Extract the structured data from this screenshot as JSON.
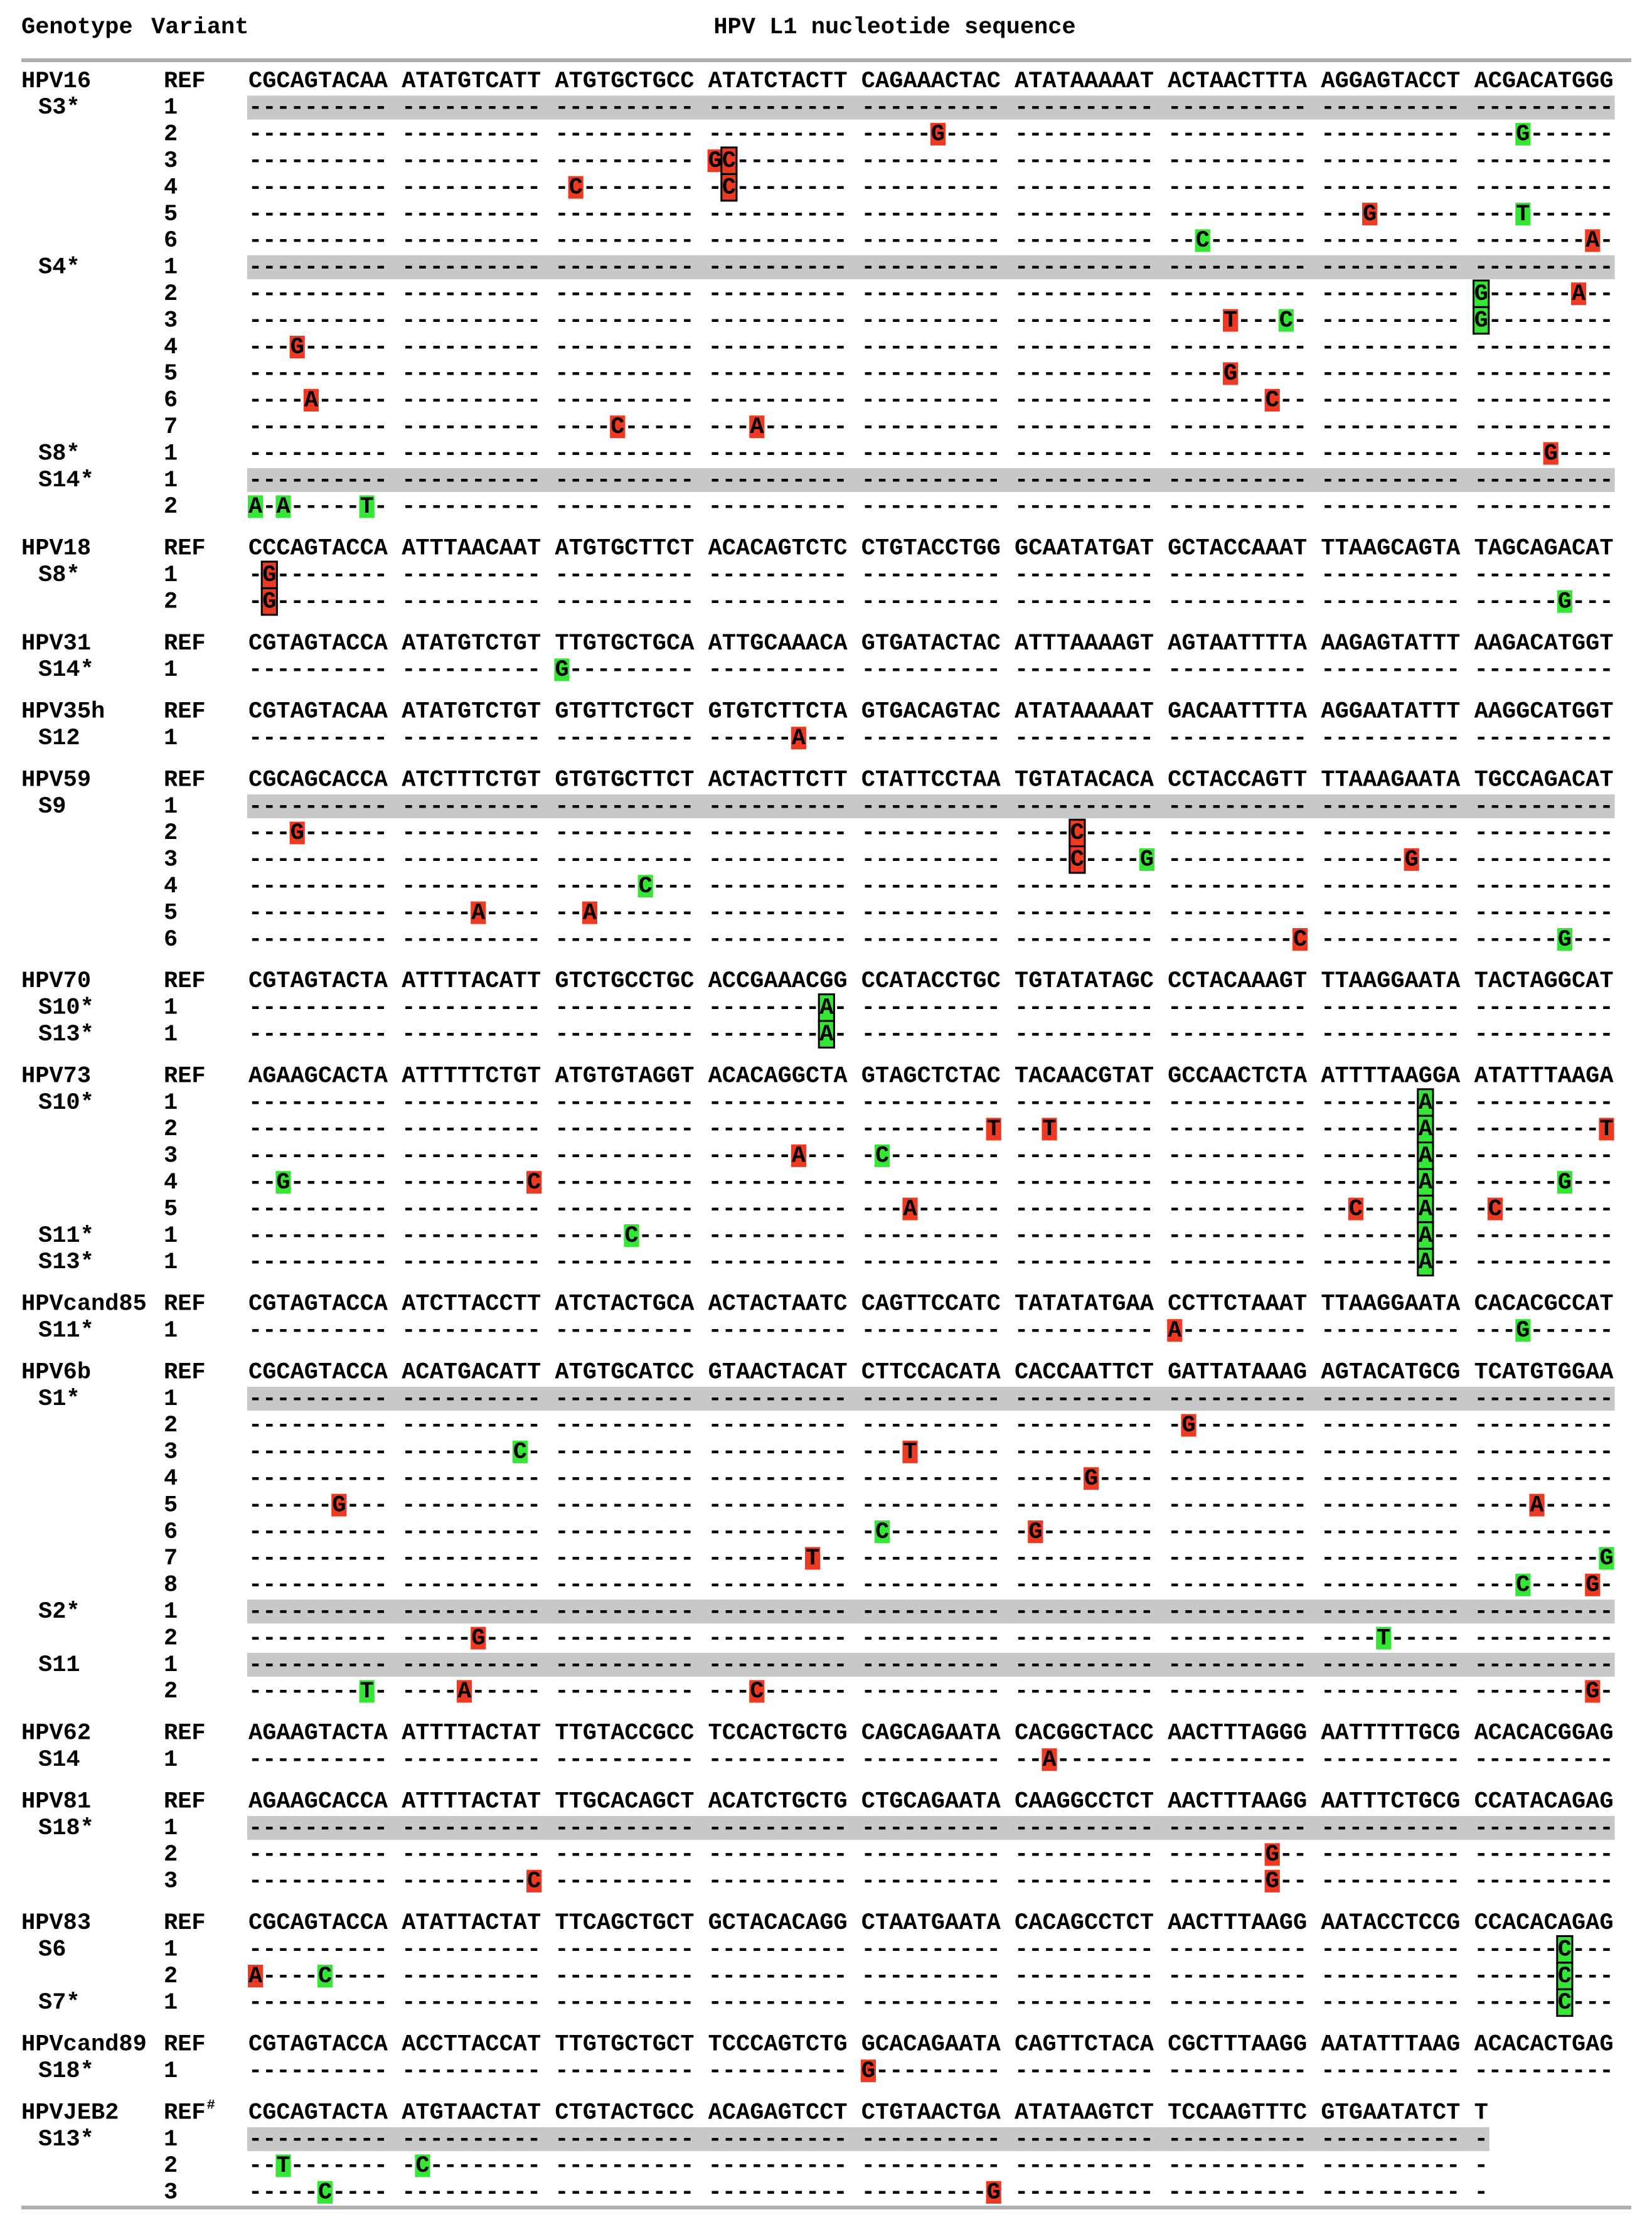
{
  "header": {
    "genotype": "Genotype",
    "variant": "Variant",
    "sequence": "HPV L1 nucleotide sequence"
  },
  "groups": [
    {
      "genotype": "HPV16",
      "ref_label": "REF",
      "ref": "CGCAGTACAA ATATGTCATT ATGTGCTGCC ATATCTACTT CAGAAACTAC ATATAAAAAT ACTAACTTTA AGGAGTACCT ACGACATGGG",
      "rows": [
        {
          "sample": "S3*",
          "variant": "1",
          "shaded": true,
          "hl": "",
          "seq": "---------- ---------- ---------- ---------- ---------- ---------- ---------- ---------- ----------"
        },
        {
          "variant": "2",
          "hl": "rg",
          "seq": "---------- ---------- ---------- ---------- -----G---- ---------- ---------- ---------- ---G------"
        },
        {
          "variant": "3",
          "hl": "rR",
          "seq": "---------- ---------- ---------- GC-------- ---------- ---------- ---------- ---------- ----------"
        },
        {
          "variant": "4",
          "hl": "rR",
          "seq": "---------- ---------- -C-------- -C-------- ---------- ---------- ---------- ---------- ----------"
        },
        {
          "variant": "5",
          "hl": "rg",
          "seq": "---------- ---------- ---------- ---------- ---------- ---------- ---------- ---G------ ---T------"
        },
        {
          "variant": "6",
          "hl": "gr",
          "seq": "---------- ---------- ---------- ---------- ---------- ---------- --C------- ---------- --------A-"
        },
        {
          "sample": "S4*",
          "variant": "1",
          "shaded": true,
          "hl": "",
          "seq": "---------- ---------- ---------- ---------- ---------- ---------- ---------- ---------- ----------"
        },
        {
          "variant": "2",
          "hl": "Gr",
          "seq": "---------- ---------- ---------- ---------- ---------- ---------- ---------- ---------- G------A--"
        },
        {
          "variant": "3",
          "hl": "rgG",
          "seq": "---------- ---------- ---------- ---------- ---------- ---------- ----T---C- ---------- G---------"
        },
        {
          "variant": "4",
          "hl": "r",
          "seq": "---G------ ---------- ---------- ---------- ---------- ---------- ---------- ---------- ----------"
        },
        {
          "variant": "5",
          "hl": "r",
          "seq": "---------- ---------- ---------- ---------- ---------- ---------- ----G----- ---------- ----------"
        },
        {
          "variant": "6",
          "hl": "rr",
          "seq": "----A----- ---------- ---------- ---------- ---------- ---------- -------C-- ---------- ----------"
        },
        {
          "variant": "7",
          "hl": "rr",
          "seq": "---------- ---------- ----C----- ---A------ ---------- ---------- ---------- ---------- ----------"
        },
        {
          "sample": "S8*",
          "variant": "1",
          "hl": "r",
          "seq": "---------- ---------- ---------- ---------- ---------- ---------- ---------- ---------- -----G----"
        },
        {
          "sample": "S14*",
          "variant": "1",
          "shaded": true,
          "hl": "",
          "seq": "---------- ---------- ---------- ---------- ---------- ---------- ---------- ---------- ----------"
        },
        {
          "variant": "2",
          "hl": "ggg",
          "seq": "A-A-----T- ---------- ---------- ---------- ---------- ---------- ---------- ---------- ----------"
        }
      ]
    },
    {
      "genotype": "HPV18",
      "ref_label": "REF",
      "ref": "CCCAGTACCA ATTTAACAAT ATGTGCTTCT ACACAGTCTC CTGTACCTGG GCAATATGAT GCTACCAAAT TTAAGCAGTA TAGCAGACAT",
      "rows": [
        {
          "sample": "S8*",
          "variant": "1",
          "hl": "R",
          "seq": "-G-------- ---------- ---------- ---------- ---------- ---------- ---------- ---------- ----------"
        },
        {
          "variant": "2",
          "hl": "Rg",
          "seq": "-G-------- ---------- ---------- ---------- ---------- ---------- ---------- ---------- ------G---"
        }
      ]
    },
    {
      "genotype": "HPV31",
      "ref_label": "REF",
      "ref": "CGTAGTACCA ATATGTCTGT TTGTGCTGCA ATTGCAAACA GTGATACTAC ATTTAAAAGT AGTAATTTTA AAGAGTATTT AAGACATGGT",
      "rows": [
        {
          "sample": "S14*",
          "variant": "1",
          "hl": "g",
          "seq": "---------- ---------- G--------- ---------- ---------- ---------- ---------- ---------- ----------"
        }
      ]
    },
    {
      "genotype": "HPV35h",
      "ref_label": "REF",
      "ref": "CGTAGTACAA ATATGTCTGT GTGTTCTGCT GTGTCTTCTA GTGACAGTAC ATATAAAAAT GACAATTTTA AGGAATATTT AAGGCATGGT",
      "rows": [
        {
          "sample": "S12",
          "variant": "1",
          "hl": "r",
          "seq": "---------- ---------- ---------- ------A--- ---------- ---------- ---------- ---------- ----------"
        }
      ]
    },
    {
      "genotype": "HPV59",
      "ref_label": "REF",
      "ref": "CGCAGCACCA ATCTTTCTGT GTGTGCTTCT ACTACTTCTT CTATTCCTAA TGTATACACA CCTACCAGTT TTAAAGAATA TGCCAGACAT",
      "rows": [
        {
          "sample": "S9",
          "variant": "1",
          "shaded": true,
          "hl": "",
          "seq": "---------- ---------- ---------- ---------- ---------- ---------- ---------- ---------- ----------"
        },
        {
          "variant": "2",
          "hl": "rR",
          "seq": "---G------ ---------- ---------- ---------- ---------- ----C----- ---------- ---------- ----------"
        },
        {
          "variant": "3",
          "hl": "Rgr",
          "seq": "---------- ---------- ---------- ---------- ---------- ----C----G ---------- ------G--- ----------"
        },
        {
          "variant": "4",
          "hl": "g",
          "seq": "---------- ---------- ------C--- ---------- ---------- ---------- ---------- ---------- ----------"
        },
        {
          "variant": "5",
          "hl": "rr",
          "seq": "---------- -----A---- --A------- ---------- ---------- ---------- ---------- ---------- ----------"
        },
        {
          "variant": "6",
          "hl": "rg",
          "seq": "---------- ---------- ---------- ---------- ---------- ---------- ---------C ---------- ------G---"
        }
      ]
    },
    {
      "genotype": "HPV70",
      "ref_label": "REF",
      "ref": "CGTAGTACTA ATTTTACATT GTCTGCCTGC ACCGAAACGG CCATACCTGC TGTATATAGC CCTACAAAGT TTAAGGAATA TACTAGGCAT",
      "rows": [
        {
          "sample": "S10*",
          "variant": "1",
          "hl": "G",
          "seq": "---------- ---------- ---------- --------A- ---------- ---------- ---------- ---------- ----------"
        },
        {
          "sample": "S13*",
          "variant": "1",
          "hl": "G",
          "seq": "---------- ---------- ---------- --------A- ---------- ---------- ---------- ---------- ----------"
        }
      ]
    },
    {
      "genotype": "HPV73",
      "ref_label": "REF",
      "ref": "AGAAGCACTA ATTTTTCTGT ATGTGTAGGT ACACAGGCTA GTAGCTCTAC TACAACGTAT GCCAACTCTA ATTTTAAGGA ATATTTAAGA",
      "rows": [
        {
          "sample": "S10*",
          "variant": "1",
          "hl": "G",
          "seq": "---------- ---------- ---------- ---------- ---------- ---------- ---------- -------A-- ----------"
        },
        {
          "variant": "2",
          "hl": "rrGr",
          "seq": "---------- ---------- ---------- ---------- ---------T --T------- ---------- -------A-- ---------T"
        },
        {
          "variant": "3",
          "hl": "rgG",
          "seq": "---------- ---------- ---------- ------A--- -C-------- ---------- ---------- -------A-- ----------"
        },
        {
          "variant": "4",
          "hl": "grGg",
          "seq": "--G------- ---------C ---------- ---------- ---------- ---------- ---------- -------A-- ------G---"
        },
        {
          "variant": "5",
          "hl": "rrGr",
          "seq": "---------- ---------- ---------- ---------- ---A------ ---------- ---------- --C----A-- -C--------"
        },
        {
          "sample": "S11*",
          "variant": "1",
          "hl": "gG",
          "seq": "---------- ---------- -----C---- ---------- ---------- ---------- ---------- -------A-- ----------"
        },
        {
          "sample": "S13*",
          "variant": "1",
          "hl": "G",
          "seq": "---------- ---------- ---------- ---------- ---------- ---------- ---------- -------A-- ----------"
        }
      ]
    },
    {
      "genotype": "HPVcand85",
      "ref_label": "REF",
      "ref": "CGTAGTACCA ATCTTACCTT ATCTACTGCA ACTACTAATC CAGTTCCATC TATATATGAA CCTTCTAAAT TTAAGGAATA CACACGCCAT",
      "rows": [
        {
          "sample": "S11*",
          "variant": "1",
          "hl": "rg",
          "seq": "---------- ---------- ---------- ---------- ---------- ---------- A--------- ---------- ---G------"
        }
      ]
    },
    {
      "genotype": "HPV6b",
      "ref_label": "REF",
      "ref": "CGCAGTACCA ACATGACATT ATGTGCATCC GTAACTACAT CTTCCACATA CACCAATTCT GATTATAAAG AGTACATGCG TCATGTGGAA",
      "rows": [
        {
          "sample": "S1*",
          "variant": "1",
          "shaded": true,
          "hl": "",
          "seq": "---------- ---------- ---------- ---------- ---------- ---------- ---------- ---------- ----------"
        },
        {
          "variant": "2",
          "hl": "r",
          "seq": "---------- ---------- ---------- ---------- ---------- ---------- -G-------- ---------- ----------"
        },
        {
          "variant": "3",
          "hl": "gr",
          "seq": "---------- --------C- ---------- ---------- ---T------ ---------- ---------- ---------- ----------"
        },
        {
          "variant": "4",
          "hl": "r",
          "seq": "---------- ---------- ---------- ---------- ---------- -----G---- ---------- ---------- ----------"
        },
        {
          "variant": "5",
          "hl": "rr",
          "seq": "------G--- ---------- ---------- ---------- ---------- ---------- ---------- ---------- ----A-----"
        },
        {
          "variant": "6",
          "hl": "gr",
          "seq": "---------- ---------- ---------- ---------- -C-------- -G-------- ---------- ---------- ----------"
        },
        {
          "variant": "7",
          "hl": "rg",
          "seq": "---------- ---------- ---------- -------T-- ---------- ---------- ---------- ---------- ---------G"
        },
        {
          "variant": "8",
          "hl": "gr",
          "seq": "---------- ---------- ---------- ---------- ---------- ---------- ---------- ---------- ---C----G-"
        },
        {
          "sample": "S2*",
          "variant": "1",
          "shaded": true,
          "hl": "",
          "seq": "---------- ---------- ---------- ---------- ---------- ---------- ---------- ---------- ----------"
        },
        {
          "variant": "2",
          "hl": "rg",
          "seq": "---------- -----G---- ---------- ---------- ---------- ---------- ---------- ----T----- ----------"
        },
        {
          "sample": "S11",
          "variant": "1",
          "shaded": true,
          "hl": "",
          "seq": "---------- ---------- ---------- ---------- ---------- ---------- ---------- ---------- ----------"
        },
        {
          "variant": "2",
          "hl": "grrr",
          "seq": "--------T- ----A----- ---------- ---C------ ---------- ---------- ---------- ---------- --------G-"
        }
      ]
    },
    {
      "genotype": "HPV62",
      "ref_label": "REF",
      "ref": "AGAAGTACTA ATTTTACTAT TTGTACCGCC TCCACTGCTG CAGCAGAATA CACGGCTACC AACTTTAGGG AATTTTTGCG ACACACGGAG",
      "rows": [
        {
          "sample": "S14",
          "variant": "1",
          "hl": "r",
          "seq": "---------- ---------- ---------- ---------- ---------- --A------- ---------- ---------- ----------"
        }
      ]
    },
    {
      "genotype": "HPV81",
      "ref_label": "REF",
      "ref": "AGAAGCACCA ATTTTACTAT TTGCACAGCT ACATCTGCTG CTGCAGAATA CAAGGCCTCT AACTTTAAGG AATTTCTGCG CCATACAGAG",
      "rows": [
        {
          "sample": "S18*",
          "variant": "1",
          "shaded": true,
          "hl": "",
          "seq": "---------- ---------- ---------- ---------- ---------- ---------- ---------- ---------- ----------"
        },
        {
          "variant": "2",
          "hl": "r",
          "seq": "---------- ---------- ---------- ---------- ---------- ---------- -------G-- ---------- ----------"
        },
        {
          "variant": "3",
          "hl": "rr",
          "seq": "---------- ---------C ---------- ---------- ---------- ---------- -------G-- ---------- ----------"
        }
      ]
    },
    {
      "genotype": "HPV83",
      "ref_label": "REF",
      "ref": "CGCAGTACCA ATATTACTAT TTCAGCTGCT GCTACACAGG CTAATGAATA CACAGCCTCT AACTTTAAGG AATACCTCCG CCACACAGAG",
      "rows": [
        {
          "sample": "S6",
          "variant": "1",
          "hl": "G",
          "seq": "---------- ---------- ---------- ---------- ---------- ---------- ---------- ---------- ------C---"
        },
        {
          "variant": "2",
          "hl": "rgG",
          "seq": "A----C---- ---------- ---------- ---------- ---------- ---------- ---------- ---------- ------C---"
        },
        {
          "sample": "S7*",
          "variant": "1",
          "hl": "G",
          "seq": "---------- ---------- ---------- ---------- ---------- ---------- ---------- ---------- ------C---"
        }
      ]
    },
    {
      "genotype": "HPVcand89",
      "ref_label": "REF",
      "ref": "CGTAGTACCA ACCTTACCAT TTGTGCTGCT TCCCAGTCTG GCACAGAATA CAGTTCTACA CGCTTTAAGG AATATTTAAG ACACACTGAG",
      "rows": [
        {
          "sample": "S18*",
          "variant": "1",
          "hl": "r",
          "seq": "---------- ---------- ---------- ---------- G--------- ---------- ---------- ---------- ----------"
        }
      ]
    },
    {
      "genotype": "HPVJEB2",
      "ref_label": "REF",
      "ref_note": "#",
      "ref": "CGCAGTACTA ATGTAACTAT CTGTACTGCC ACAGAGTCCT CTGTAACTGA ATATAAGTCT TCCAAGTTTC GTGAATATCT T",
      "rows": [
        {
          "sample": "S13*",
          "variant": "1",
          "shaded": true,
          "hl": "",
          "seq": "---------- ---------- ---------- ---------- ---------- ---------- ---------- ---------- -"
        },
        {
          "variant": "2",
          "hl": "gg",
          "seq": "--T------- -C-------- ---------- ---------- ---------- ---------- ---------- ---------- -"
        },
        {
          "variant": "3",
          "hl": "gr",
          "seq": "-----C---- ---------- ---------- ---------- ---------G ---------- ---------- ---------- -"
        }
      ]
    }
  ]
}
